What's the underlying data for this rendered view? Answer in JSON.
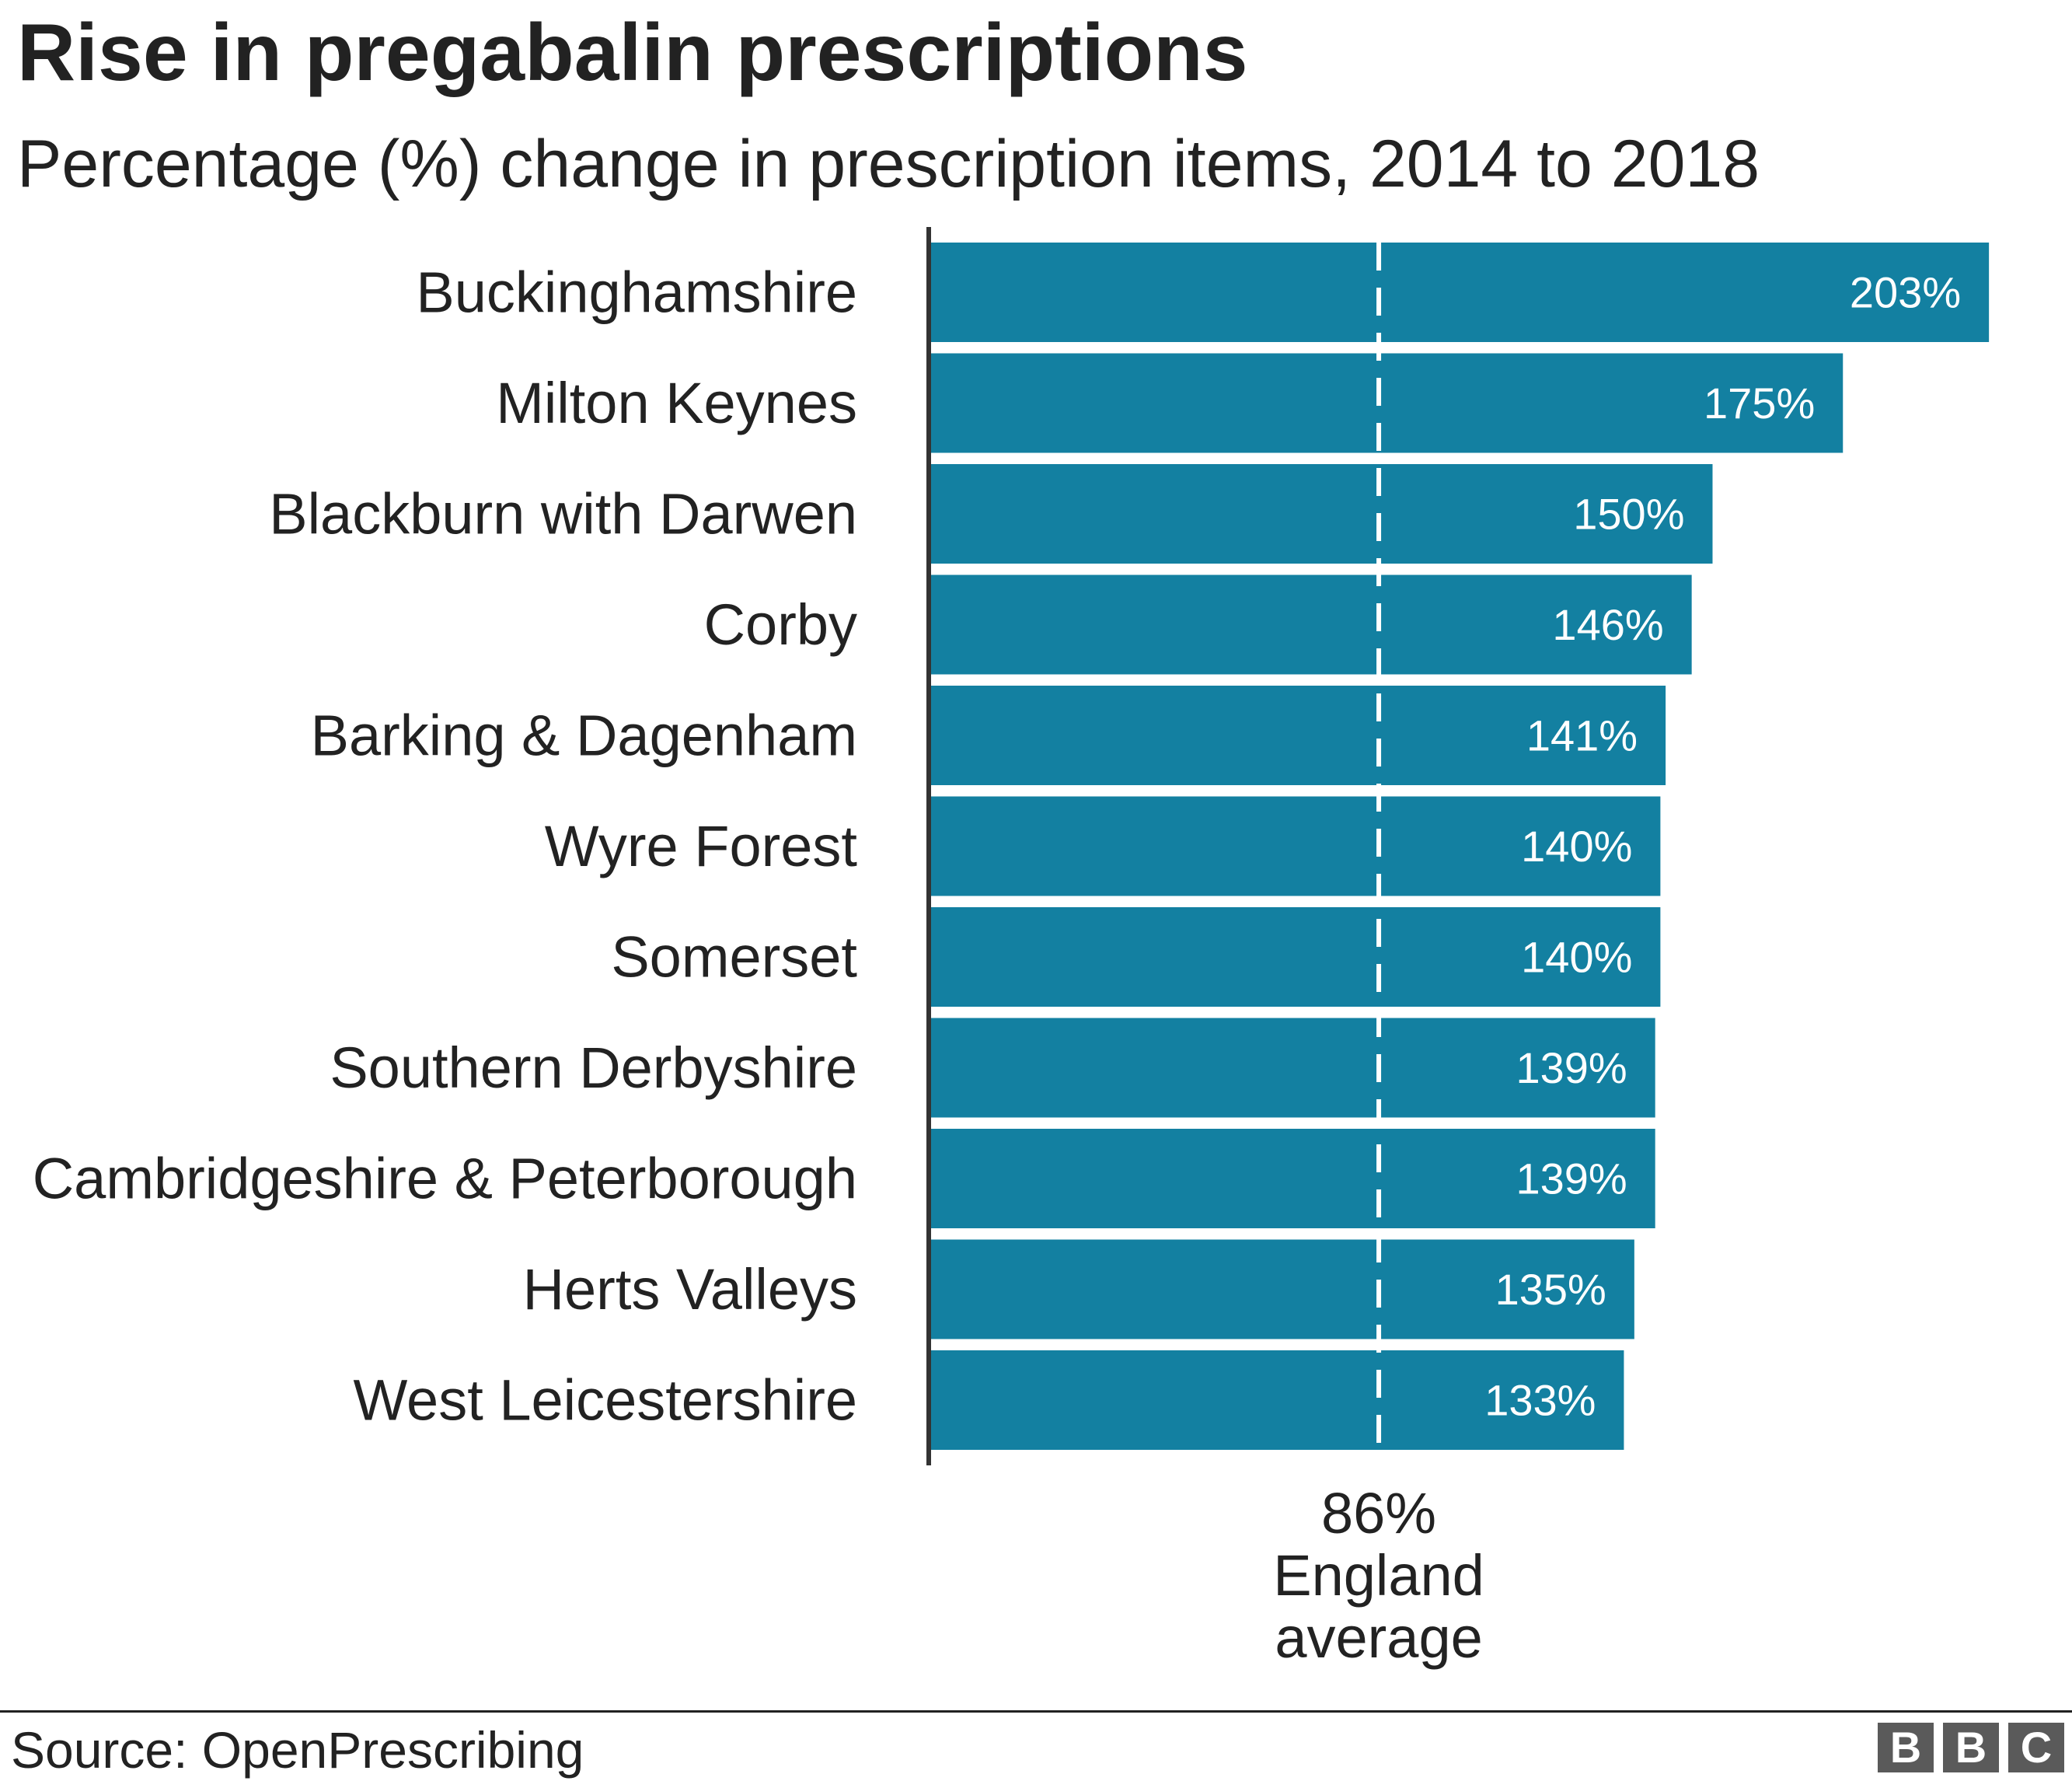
{
  "chart_data": {
    "type": "bar",
    "orientation": "horizontal",
    "title": "Rise in pregabalin prescriptions",
    "subtitle": "Percentage (%) change in prescription items, 2014 to 2018",
    "categories": [
      "Buckinghamshire",
      "Milton Keynes",
      "Blackburn with Darwen",
      "Corby",
      "Barking & Dagenham",
      "Wyre Forest",
      "Somerset",
      "Southern Derbyshire",
      "Cambridgeshire & Peterborough",
      "Herts Valleys",
      "West Leicestershire"
    ],
    "values": [
      203,
      175,
      150,
      146,
      141,
      140,
      140,
      139,
      139,
      135,
      133
    ],
    "value_labels": [
      "203%",
      "175%",
      "150%",
      "146%",
      "141%",
      "140%",
      "140%",
      "139%",
      "139%",
      "135%",
      "133%"
    ],
    "xlim": [
      0,
      210
    ],
    "reference_line": {
      "value": 86,
      "label_lines": [
        "86%",
        "England",
        "average"
      ]
    },
    "colors": {
      "bar": "#1380a1",
      "axis": "#333333",
      "text": "#222222",
      "value_text": "#ffffff",
      "reference_line": "#ffffff"
    }
  },
  "footer": {
    "source": "Source: OpenPrescribing",
    "logo_letters": [
      "B",
      "B",
      "C"
    ]
  }
}
